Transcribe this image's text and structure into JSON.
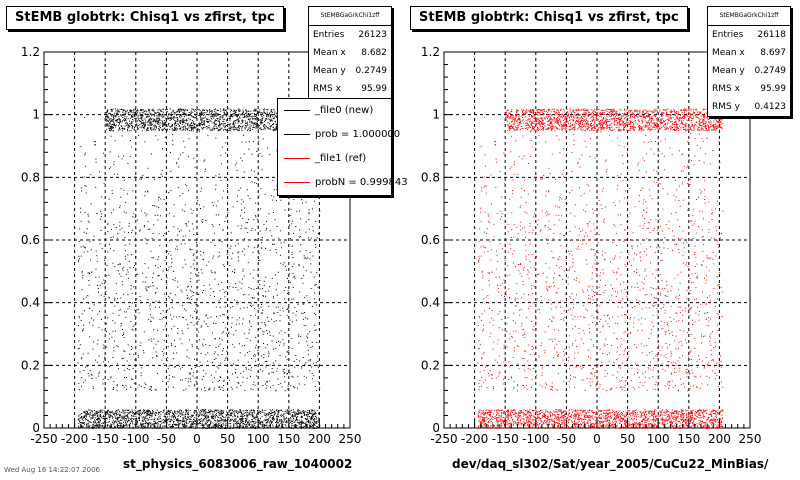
{
  "chart_data": [
    {
      "type": "scatter",
      "title": "StEMB globtrk: Chisq1 vs zfirst, tpc",
      "xlabel": "",
      "ylabel": "",
      "xlim": [
        -250,
        250
      ],
      "ylim": [
        0,
        1.2
      ],
      "x_ticks": [
        "-250",
        "-200",
        "-150",
        "-100",
        "-50",
        "0",
        "50",
        "100",
        "150",
        "200",
        "250"
      ],
      "y_ticks": [
        "0",
        "0.2",
        "0.4",
        "0.6",
        "0.8",
        "1",
        "1.2"
      ],
      "grid": true,
      "marker_color": "#000000",
      "series": [
        {
          "name": "_file0 (new)",
          "x_range": [
            -195,
            200
          ],
          "y_bands": [
            [
              0,
              0.06
            ],
            [
              0.95,
              1.02
            ]
          ]
        }
      ],
      "stats": {
        "name": "StEMBGaGrkChi1zff",
        "rows": [
          {
            "label": "Entries",
            "value": "26123"
          },
          {
            "label": "Mean x",
            "value": "8.682"
          },
          {
            "label": "Mean y",
            "value": "0.2749"
          },
          {
            "label": "RMS x",
            "value": "95.99"
          }
        ]
      },
      "legend": {
        "position": "top-right",
        "entries": [
          {
            "label": "_file0 (new)",
            "color": "#000000"
          },
          {
            "label": "prob = 1.000000",
            "color": "#000000"
          },
          {
            "label": "_file1 (ref)",
            "color": "#ff0000"
          },
          {
            "label": "probN = 0.999843",
            "color": "#ff0000"
          }
        ]
      },
      "file_label": "st_physics_6083006_raw_1040002"
    },
    {
      "type": "scatter",
      "title": "StEMB globtrk: Chisq1 vs zfirst, tpc",
      "xlabel": "",
      "ylabel": "",
      "xlim": [
        -250,
        250
      ],
      "ylim": [
        0,
        1.2
      ],
      "x_ticks": [
        "-250",
        "-200",
        "-150",
        "-100",
        "-50",
        "0",
        "50",
        "100",
        "150",
        "200",
        "250"
      ],
      "y_ticks": [
        "0",
        "0.2",
        "0.4",
        "0.6",
        "0.8",
        "1",
        "1.2"
      ],
      "grid": true,
      "marker_color": "#ff0000",
      "series": [
        {
          "name": "_file1 (ref)",
          "x_range": [
            -195,
            205
          ],
          "y_bands": [
            [
              0,
              0.06
            ],
            [
              0.95,
              1.02
            ]
          ]
        }
      ],
      "stats": {
        "name": "StEMBGaGrkChi1zff",
        "rows": [
          {
            "label": "Entries",
            "value": "26118"
          },
          {
            "label": "Mean x",
            "value": "8.697"
          },
          {
            "label": "Mean y",
            "value": "0.2749"
          },
          {
            "label": "RMS x",
            "value": "95.99"
          },
          {
            "label": "RMS y",
            "value": "0.4123"
          }
        ]
      },
      "file_label": "dev/daq_sl302/Sat/year_2005/CuCu22_MinBias/"
    }
  ],
  "footer": {
    "date": "Wed Aug 16 14:22:07 2006"
  }
}
